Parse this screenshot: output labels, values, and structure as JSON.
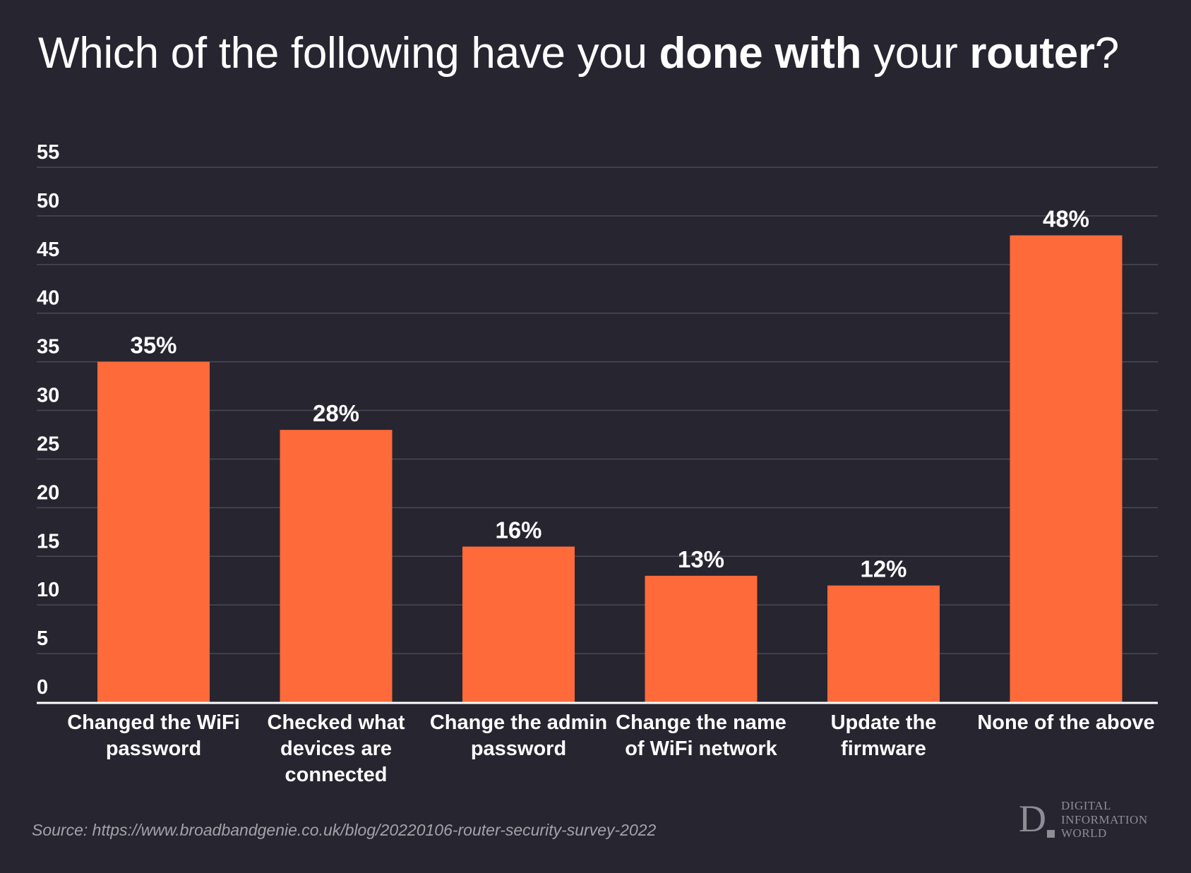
{
  "title": {
    "part1": "Which of the following have you ",
    "bold1": "done with",
    "part2": " your ",
    "bold2": "router",
    "part3": "?"
  },
  "chart_data": {
    "type": "bar",
    "title": "Which of the following have you done with your router?",
    "categories": [
      [
        "Changed the WiFi",
        "password"
      ],
      [
        "Checked what",
        "devices are",
        "connected"
      ],
      [
        "Change the admin",
        "password"
      ],
      [
        "Change the name",
        "of WiFi network"
      ],
      [
        "Update the",
        "firmware"
      ],
      [
        "None of the above"
      ]
    ],
    "values": [
      35,
      28,
      16,
      13,
      12,
      48
    ],
    "value_labels": [
      "35%",
      "28%",
      "16%",
      "13%",
      "12%",
      "48%"
    ],
    "yticks": [
      0,
      5,
      10,
      15,
      20,
      25,
      30,
      35,
      40,
      45,
      50,
      55
    ],
    "ylim": [
      0,
      55
    ],
    "xlabel": "",
    "ylabel": "",
    "grid": true,
    "bar_color": "#ff6a3a",
    "grid_color": "#4a4a55",
    "axis_color": "#ffffff"
  },
  "source": "Source: https://www.broadbandgenie.co.uk/blog/20220106-router-security-survey-2022",
  "logo": {
    "mark": "D",
    "lines": [
      "DIGITAL",
      "INFORMATION",
      "WORLD"
    ]
  }
}
